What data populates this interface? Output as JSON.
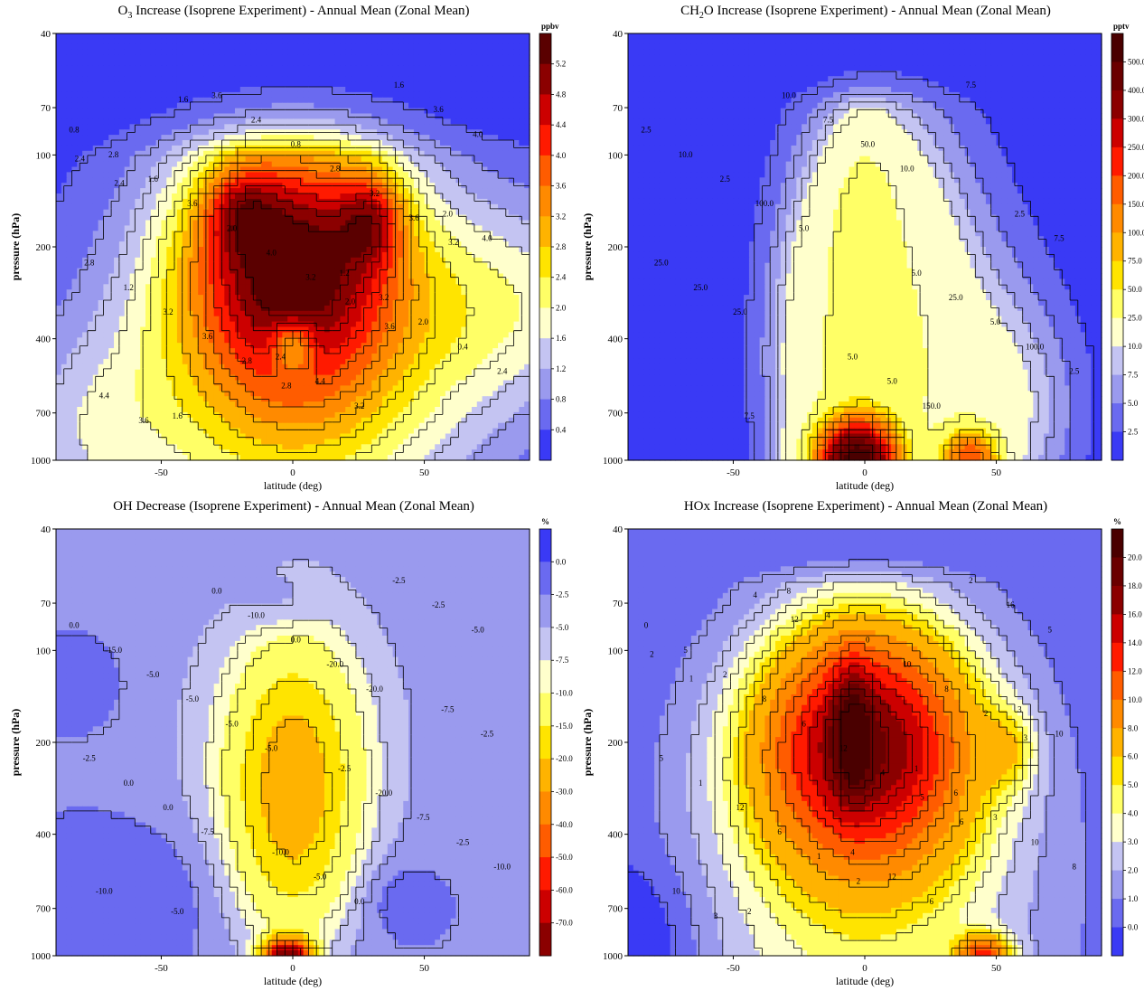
{
  "chart_data": [
    {
      "id": "o3",
      "type": "heatmap",
      "title": "O",
      "title_sub": "3",
      "title_rest": " Increase (Isoprene Experiment) - Annual Mean (Zonal Mean)",
      "xlabel": "latitude (deg)",
      "ylabel": "pressure (hPa)",
      "unit": "ppbv",
      "xlim": [
        -90,
        90
      ],
      "ylim": [
        1000,
        40
      ],
      "y_scale": "log",
      "x_ticks": [
        "-50",
        "0",
        "50"
      ],
      "y_ticks": [
        "40",
        "70",
        "100",
        "200",
        "400",
        "700",
        "1000"
      ],
      "colorbar_ticks": [
        "0.4",
        "0.8",
        "1.2",
        "1.6",
        "2.0",
        "2.4",
        "2.8",
        "3.2",
        "3.6",
        "4.0",
        "4.4",
        "4.8",
        "5.2"
      ],
      "colors": [
        "#3a3af5",
        "#6a6af0",
        "#9a9aee",
        "#c4c4f2",
        "#ffffcc",
        "#ffff66",
        "#ffe400",
        "#ffb300",
        "#ff8a00",
        "#ff5c00",
        "#ff1a00",
        "#cc0000",
        "#8b0000",
        "#5a0000"
      ],
      "contour_labels": [
        "0.8",
        "1.2",
        "1.6",
        "2.0",
        "2.4",
        "2.8",
        "3.2",
        "3.6",
        "4.0",
        "4.4",
        "1.6",
        "2.0",
        "2.4",
        "2.8",
        "3.2",
        "3.6",
        "0.4",
        "0.8",
        "1.2",
        "1.6",
        "2.0",
        "2.4",
        "2.8",
        "3.2",
        "3.6",
        "4.0",
        "4.4",
        "3.2",
        "3.6",
        "4.0",
        "3.2",
        "3.6",
        "3.6",
        "2.8",
        "2.4",
        "2.0",
        "1.6",
        "3.2",
        "2.8",
        "2.4",
        "3.6"
      ]
    },
    {
      "id": "ch2o",
      "type": "heatmap",
      "title": "CH",
      "title_sub": "2",
      "title_rest": "O Increase (Isoprene Experiment) - Annual Mean (Zonal Mean)",
      "xlabel": "latitude (deg)",
      "ylabel": "pressure (hPa)",
      "unit": "pptv",
      "xlim": [
        -90,
        90
      ],
      "ylim": [
        1000,
        40
      ],
      "y_scale": "log",
      "x_ticks": [
        "-50",
        "0",
        "50"
      ],
      "y_ticks": [
        "40",
        "70",
        "100",
        "200",
        "400",
        "700",
        "1000"
      ],
      "colorbar_ticks": [
        "2.5",
        "5.0",
        "7.5",
        "10.0",
        "25.0",
        "50.0",
        "75.0",
        "100.0",
        "150.0",
        "200.0",
        "250.0",
        "300.0",
        "400.0",
        "500.0"
      ],
      "colors": [
        "#3a3af5",
        "#6a6af0",
        "#9a9aee",
        "#c4c4f2",
        "#ffffcc",
        "#ffff66",
        "#ffe400",
        "#ffb300",
        "#ff8a00",
        "#ff5c00",
        "#ff1a00",
        "#cc0000",
        "#8b0000",
        "#6a0000",
        "#4a0000"
      ],
      "contour_labels": [
        "2.5",
        "5.0",
        "7.5",
        "2.5",
        "5.0",
        "10.0",
        "25.0",
        "10.0",
        "7.5",
        "5.0",
        "2.5",
        "5.0",
        "7.5",
        "25.0",
        "150.0",
        "100.0",
        "100.0",
        "50.0",
        "25.0",
        "7.5",
        "5.0",
        "2.5",
        "10.0",
        "25.0"
      ]
    },
    {
      "id": "oh",
      "type": "heatmap",
      "title": "OH Decrease (Isoprene Experiment) - Annual Mean (Zonal Mean)",
      "title_sub": "",
      "title_rest": "",
      "xlabel": "latitude (deg)",
      "ylabel": "pressure (hPa)",
      "unit": "%",
      "xlim": [
        -90,
        90
      ],
      "ylim": [
        1000,
        40
      ],
      "y_scale": "log",
      "x_ticks": [
        "-50",
        "0",
        "50"
      ],
      "y_ticks": [
        "40",
        "70",
        "100",
        "200",
        "400",
        "700",
        "1000"
      ],
      "colorbar_ticks": [
        "0.0",
        "-2.5",
        "-5.0",
        "-7.5",
        "-10.0",
        "-15.0",
        "-20.0",
        "-30.0",
        "-40.0",
        "-50.0",
        "-60.0",
        "-70.0"
      ],
      "colors": [
        "#3a3af5",
        "#6a6af0",
        "#9a9aee",
        "#c4c4f2",
        "#ffffcc",
        "#ffff66",
        "#ffe400",
        "#ffb300",
        "#ff8a00",
        "#ff5c00",
        "#ff1a00",
        "#cc0000",
        "#8b0000"
      ],
      "contour_labels": [
        "0.0",
        "-2.5",
        "-5.0",
        "-7.5",
        "-10.0",
        "-15.0",
        "-20.0",
        "0.0",
        "-2.5",
        "-5.0",
        "-5.0",
        "-7.5",
        "-10.0",
        "-2.5",
        "0.0",
        "-5.0",
        "-2.5",
        "0.0",
        "0.0",
        "-2.5",
        "-5.0",
        "-10.0",
        "-20.0",
        "0.0",
        "-2.5",
        "-5.0",
        "-10.0",
        "-20.0",
        "-7.5",
        "-5.0"
      ]
    },
    {
      "id": "hox",
      "type": "heatmap",
      "title": "HOx Increase (Isoprene Experiment) - Annual Mean (Zonal Mean)",
      "title_sub": "",
      "title_rest": "",
      "xlabel": "latitude (deg)",
      "ylabel": "pressure (hPa)",
      "unit": "%",
      "xlim": [
        -90,
        90
      ],
      "ylim": [
        1000,
        40
      ],
      "y_scale": "log",
      "x_ticks": [
        "-50",
        "0",
        "50"
      ],
      "y_ticks": [
        "40",
        "70",
        "100",
        "200",
        "400",
        "700",
        "1000"
      ],
      "colorbar_ticks": [
        "0.0",
        "1.0",
        "2.0",
        "3.0",
        "4.0",
        "5.0",
        "6.0",
        "8.0",
        "10.0",
        "12.0",
        "14.0",
        "16.0",
        "18.0",
        "20.0"
      ],
      "colors": [
        "#3a3af5",
        "#6a6af0",
        "#9a9aee",
        "#c4c4f2",
        "#ffffcc",
        "#ffff66",
        "#ffe400",
        "#ffb300",
        "#ff8a00",
        "#ff5c00",
        "#ff1a00",
        "#cc0000",
        "#8b0000",
        "#6a0000",
        "#4a0000"
      ],
      "contour_labels": [
        "0",
        "1",
        "2",
        "3",
        "4",
        "5",
        "6",
        "8",
        "10",
        "12",
        "2",
        "3",
        "4",
        "5",
        "6",
        "8",
        "10",
        "0",
        "1",
        "2",
        "6",
        "8",
        "10",
        "12",
        "16",
        "12",
        "10",
        "8",
        "6",
        "5",
        "4",
        "3",
        "2",
        "1",
        "2",
        "5",
        "4",
        "3",
        "2",
        "1",
        "6",
        "12"
      ]
    }
  ]
}
